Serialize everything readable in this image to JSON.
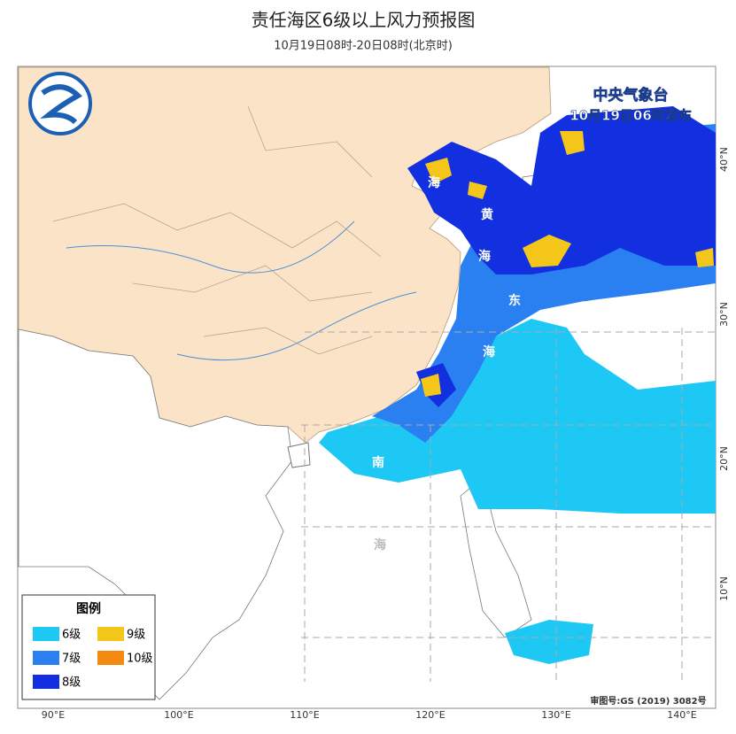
{
  "header": {
    "title": "责任海区6级以上风力预报图",
    "subtitle": "10月19日08时-20日08时(北京时)"
  },
  "issuer": {
    "name": "中央气象台",
    "time": "10月19日06时发布"
  },
  "sea_labels": [
    "海",
    "黄",
    "海",
    "东",
    "海",
    "南",
    "海"
  ],
  "lon_labels": [
    "90°E",
    "100°E",
    "110°E",
    "120°E",
    "130°E",
    "140°E"
  ],
  "lat_labels": [
    "40°N",
    "30°N",
    "20°N",
    "10°N"
  ],
  "legend": {
    "title": "图例",
    "items": [
      {
        "label": "6级",
        "color": "#1ec8f5"
      },
      {
        "label": "7级",
        "color": "#2a80f0"
      },
      {
        "label": "8级",
        "color": "#1230e0"
      },
      {
        "label": "9级",
        "color": "#f5c61a"
      },
      {
        "label": "10级",
        "color": "#f58a12"
      }
    ]
  },
  "review_number": "审图号:GS (2019) 3082号"
}
